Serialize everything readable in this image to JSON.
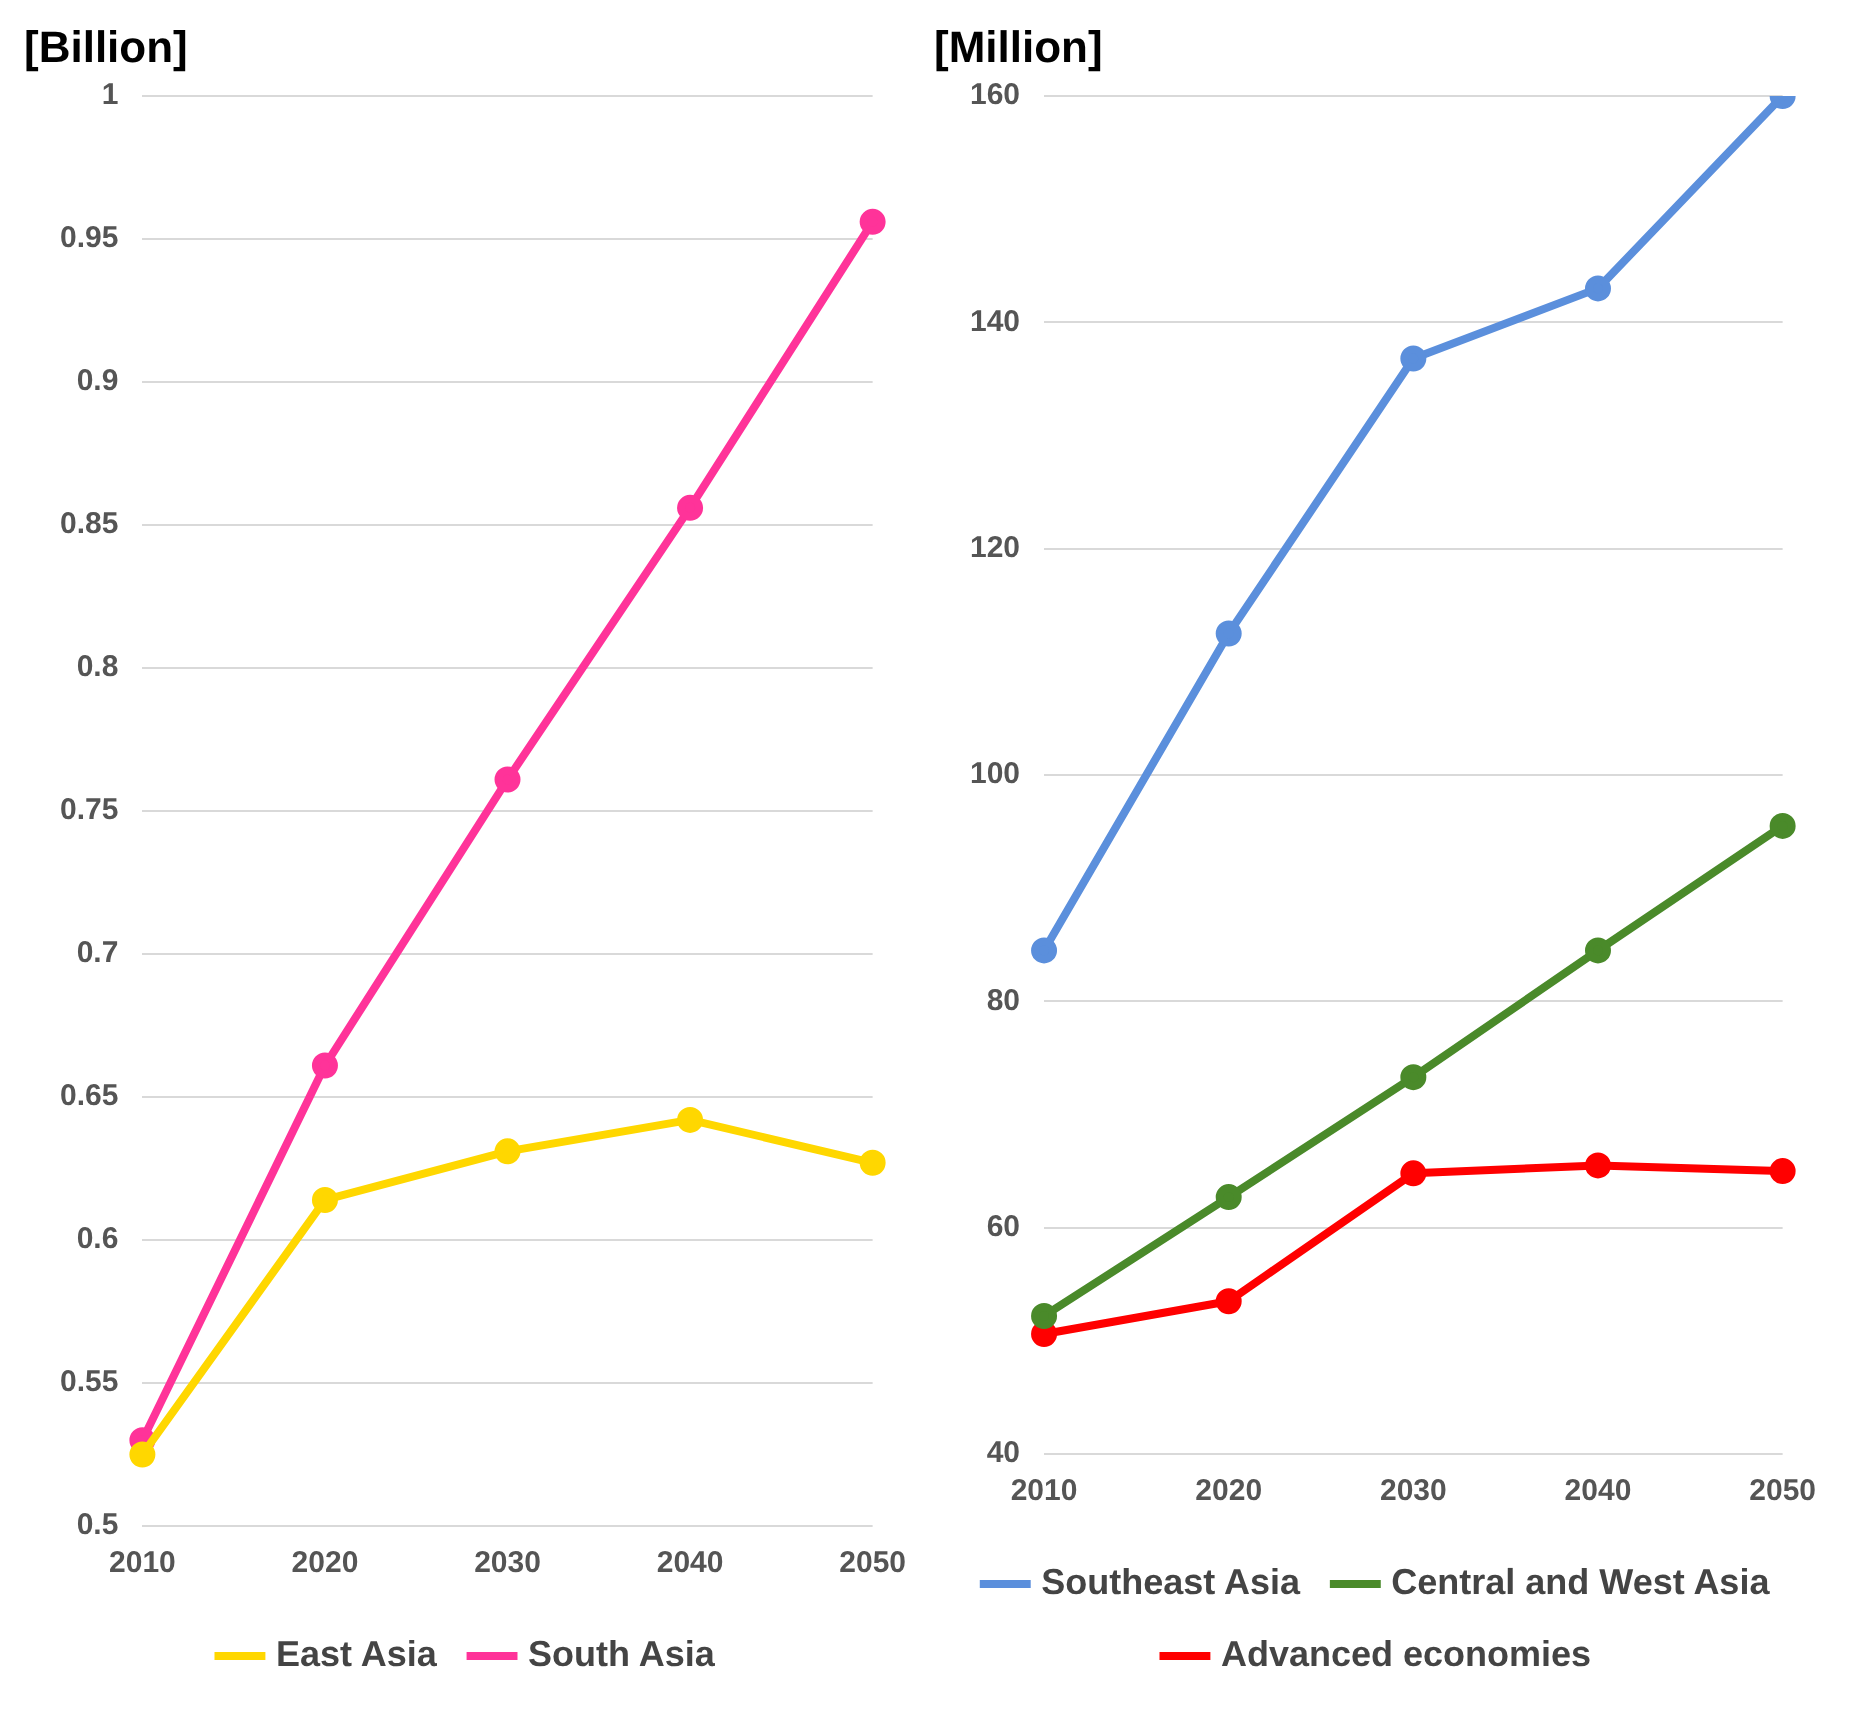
{
  "chart_data": [
    {
      "type": "line",
      "ylabel": "[Billion]",
      "categories": [
        "2010",
        "2020",
        "2030",
        "2040",
        "2050"
      ],
      "ylim": [
        0.5,
        1
      ],
      "yticks": [
        0.5,
        0.55,
        0.6,
        0.65,
        0.7,
        0.75,
        0.8,
        0.85,
        0.9,
        0.95,
        1
      ],
      "grid": "y",
      "legend": "bottom",
      "marker": "circle",
      "series": [
        {
          "name": "East Asia",
          "color": "#ffd700",
          "values": [
            0.525,
            0.614,
            0.631,
            0.642,
            0.627
          ]
        },
        {
          "name": "South Asia",
          "color": "#ff3399",
          "values": [
            0.53,
            0.661,
            0.761,
            0.856,
            0.956
          ]
        }
      ]
    },
    {
      "type": "line",
      "ylabel": "[Million]",
      "categories": [
        "2010",
        "2020",
        "2030",
        "2040",
        "2050"
      ],
      "ylim": [
        40,
        160
      ],
      "yticks": [
        40,
        60,
        80,
        100,
        120,
        140,
        160
      ],
      "grid": "y",
      "legend": "bottom",
      "marker": "circle",
      "series": [
        {
          "name": "Southeast Asia",
          "color": "#5b8fdc",
          "values": [
            84.5,
            112.5,
            136.8,
            143,
            160
          ]
        },
        {
          "name": "Central and West Asia",
          "color": "#4a8a2a",
          "values": [
            52.2,
            62.7,
            73.3,
            84.5,
            95.5
          ]
        },
        {
          "name": "Advanced economies",
          "color": "#ff0000",
          "values": [
            50.6,
            53.5,
            64.8,
            65.5,
            65
          ]
        }
      ]
    }
  ]
}
